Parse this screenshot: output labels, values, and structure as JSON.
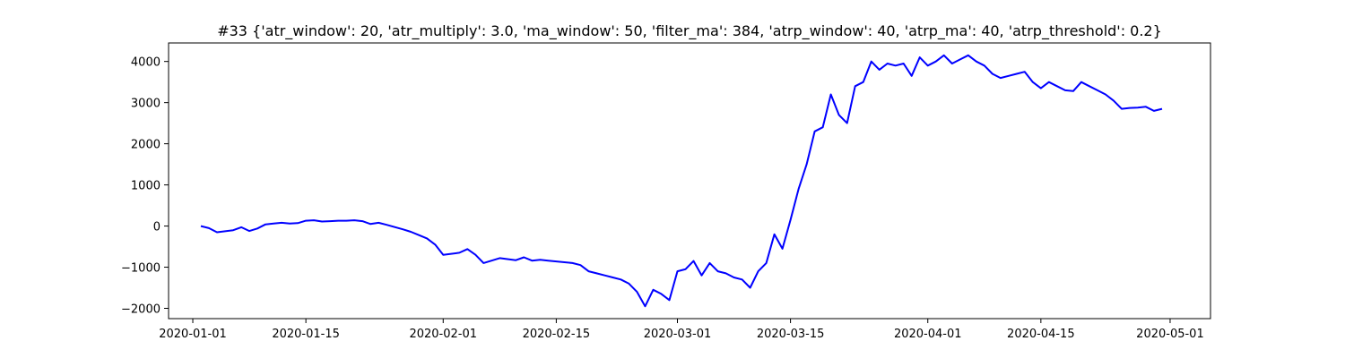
{
  "chart_data": {
    "type": "line",
    "title": "#33 {'atr_window': 20, 'atr_multiply': 3.0, 'ma_window': 50, 'filter_ma': 384, 'atrp_window': 40, 'atrp_ma': 40, 'atrp_threshold': 0.2}",
    "xlabel": "",
    "ylabel": "",
    "xlim": [
      "2019-12-29",
      "2020-05-06"
    ],
    "ylim": [
      -2250,
      4450
    ],
    "x_ticks": [
      "2020-01-01",
      "2020-01-15",
      "2020-02-01",
      "2020-02-15",
      "2020-03-01",
      "2020-03-15",
      "2020-04-01",
      "2020-04-15",
      "2020-05-01"
    ],
    "y_ticks": [
      -2000,
      -1000,
      0,
      1000,
      2000,
      3000,
      4000
    ],
    "grid": false,
    "series": [
      {
        "color": "#0000ff",
        "points": [
          [
            "2020-01-02",
            0
          ],
          [
            "2020-01-03",
            -50
          ],
          [
            "2020-01-04",
            -150
          ],
          [
            "2020-01-06",
            -100
          ],
          [
            "2020-01-07",
            -30
          ],
          [
            "2020-01-08",
            -120
          ],
          [
            "2020-01-09",
            -60
          ],
          [
            "2020-01-10",
            40
          ],
          [
            "2020-01-11",
            60
          ],
          [
            "2020-01-12",
            80
          ],
          [
            "2020-01-13",
            60
          ],
          [
            "2020-01-14",
            70
          ],
          [
            "2020-01-15",
            130
          ],
          [
            "2020-01-16",
            140
          ],
          [
            "2020-01-17",
            110
          ],
          [
            "2020-01-18",
            120
          ],
          [
            "2020-01-19",
            130
          ],
          [
            "2020-01-20",
            130
          ],
          [
            "2020-01-21",
            140
          ],
          [
            "2020-01-22",
            120
          ],
          [
            "2020-01-23",
            50
          ],
          [
            "2020-01-24",
            80
          ],
          [
            "2020-01-25",
            30
          ],
          [
            "2020-01-27",
            -80
          ],
          [
            "2020-01-28",
            -140
          ],
          [
            "2020-01-29",
            -220
          ],
          [
            "2020-01-30",
            -300
          ],
          [
            "2020-01-31",
            -450
          ],
          [
            "2020-02-01",
            -700
          ],
          [
            "2020-02-03",
            -650
          ],
          [
            "2020-02-04",
            -560
          ],
          [
            "2020-02-05",
            -700
          ],
          [
            "2020-02-06",
            -900
          ],
          [
            "2020-02-08",
            -780
          ],
          [
            "2020-02-10",
            -830
          ],
          [
            "2020-02-11",
            -760
          ],
          [
            "2020-02-12",
            -840
          ],
          [
            "2020-02-13",
            -820
          ],
          [
            "2020-02-14",
            -840
          ],
          [
            "2020-02-17",
            -900
          ],
          [
            "2020-02-18",
            -950
          ],
          [
            "2020-02-19",
            -1100
          ],
          [
            "2020-02-20",
            -1150
          ],
          [
            "2020-02-21",
            -1200
          ],
          [
            "2020-02-22",
            -1250
          ],
          [
            "2020-02-23",
            -1300
          ],
          [
            "2020-02-24",
            -1400
          ],
          [
            "2020-02-25",
            -1600
          ],
          [
            "2020-02-26",
            -1950
          ],
          [
            "2020-02-27",
            -1550
          ],
          [
            "2020-02-28",
            -1650
          ],
          [
            "2020-02-29",
            -1800
          ],
          [
            "2020-03-01",
            -1100
          ],
          [
            "2020-03-02",
            -1050
          ],
          [
            "2020-03-03",
            -850
          ],
          [
            "2020-03-04",
            -1200
          ],
          [
            "2020-03-05",
            -900
          ],
          [
            "2020-03-06",
            -1100
          ],
          [
            "2020-03-07",
            -1150
          ],
          [
            "2020-03-08",
            -1250
          ],
          [
            "2020-03-09",
            -1300
          ],
          [
            "2020-03-10",
            -1500
          ],
          [
            "2020-03-11",
            -1100
          ],
          [
            "2020-03-12",
            -900
          ],
          [
            "2020-03-13",
            -200
          ],
          [
            "2020-03-14",
            -550
          ],
          [
            "2020-03-15",
            150
          ],
          [
            "2020-03-16",
            900
          ],
          [
            "2020-03-17",
            1500
          ],
          [
            "2020-03-18",
            2300
          ],
          [
            "2020-03-19",
            2400
          ],
          [
            "2020-03-20",
            3200
          ],
          [
            "2020-03-21",
            2700
          ],
          [
            "2020-03-22",
            2500
          ],
          [
            "2020-03-23",
            3400
          ],
          [
            "2020-03-24",
            3500
          ],
          [
            "2020-03-25",
            4000
          ],
          [
            "2020-03-26",
            3800
          ],
          [
            "2020-03-27",
            3950
          ],
          [
            "2020-03-28",
            3900
          ],
          [
            "2020-03-29",
            3950
          ],
          [
            "2020-03-30",
            3650
          ],
          [
            "2020-03-31",
            4100
          ],
          [
            "2020-04-01",
            3900
          ],
          [
            "2020-04-02",
            4000
          ],
          [
            "2020-04-03",
            4150
          ],
          [
            "2020-04-04",
            3950
          ],
          [
            "2020-04-05",
            4050
          ],
          [
            "2020-04-06",
            4150
          ],
          [
            "2020-04-07",
            4000
          ],
          [
            "2020-04-08",
            3900
          ],
          [
            "2020-04-09",
            3700
          ],
          [
            "2020-04-10",
            3600
          ],
          [
            "2020-04-11",
            3650
          ],
          [
            "2020-04-12",
            3700
          ],
          [
            "2020-04-13",
            3750
          ],
          [
            "2020-04-14",
            3500
          ],
          [
            "2020-04-15",
            3350
          ],
          [
            "2020-04-16",
            3500
          ],
          [
            "2020-04-17",
            3400
          ],
          [
            "2020-04-18",
            3300
          ],
          [
            "2020-04-19",
            3280
          ],
          [
            "2020-04-20",
            3500
          ],
          [
            "2020-04-21",
            3400
          ],
          [
            "2020-04-22",
            3300
          ],
          [
            "2020-04-23",
            3200
          ],
          [
            "2020-04-24",
            3050
          ],
          [
            "2020-04-25",
            2850
          ],
          [
            "2020-04-26",
            2870
          ],
          [
            "2020-04-27",
            2880
          ],
          [
            "2020-04-28",
            2900
          ],
          [
            "2020-04-29",
            2800
          ],
          [
            "2020-04-30",
            2850
          ]
        ]
      }
    ]
  }
}
